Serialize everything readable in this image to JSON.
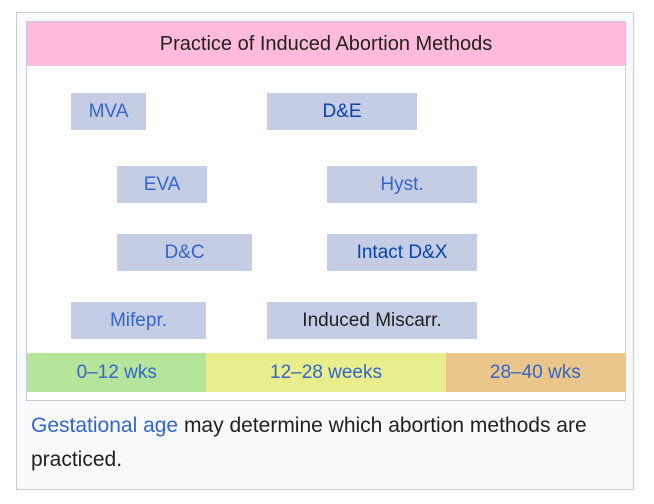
{
  "title": "Practice of Induced Abortion Methods",
  "methods": {
    "mva": "MVA",
    "de": "D&E",
    "eva": "EVA",
    "hyst": "Hyst.",
    "dc": "D&C",
    "intact_dx": "Intact D&X",
    "mifepr": "Mifepr.",
    "induced_miscarr": "Induced Miscarr."
  },
  "timeline": {
    "first": "0–12 wks",
    "second": "12–28 weeks",
    "third": "28–40 wks"
  },
  "caption": {
    "link": "Gestational age",
    "text": " may determine which abortion methods are practiced."
  },
  "colors": {
    "title_bg": "#ffbbd9",
    "method_bg": "#c4cde3",
    "first_trimester": "#b5e59a",
    "second_trimester": "#e9ee8c",
    "third_trimester": "#ebc68a",
    "link": "#3366cc"
  }
}
